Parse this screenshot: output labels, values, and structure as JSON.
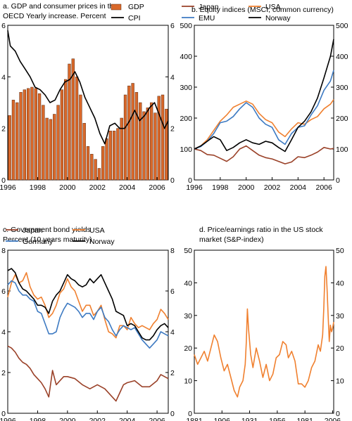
{
  "chart_data": [
    {
      "id": "a",
      "type": "bar",
      "title_lines": [
        "a. GDP and consumer prices in the",
        "OECD Yearly increase. Percent"
      ],
      "ylim": [
        0,
        6
      ],
      "y_ticks": [
        0,
        2,
        4,
        6
      ],
      "x_range": [
        1996,
        2006.75
      ],
      "x_ticks": [
        1996,
        1998,
        2000,
        2002,
        2004,
        2006
      ],
      "legend": [
        {
          "name": "GDP",
          "color": "#d9682a",
          "kind": "bar"
        },
        {
          "name": "CPI",
          "color": "#000000",
          "kind": "line"
        }
      ],
      "series": [
        {
          "name": "GDP",
          "kind": "bar",
          "color": "#d9682a",
          "x": [
            1996.0,
            1996.25,
            1996.5,
            1996.75,
            1997.0,
            1997.25,
            1997.5,
            1997.75,
            1998.0,
            1998.25,
            1998.5,
            1998.75,
            1999.0,
            1999.25,
            1999.5,
            1999.75,
            2000.0,
            2000.25,
            2000.5,
            2000.75,
            2001.0,
            2001.25,
            2001.5,
            2001.75,
            2002.0,
            2002.25,
            2002.5,
            2002.75,
            2003.0,
            2003.25,
            2003.5,
            2003.75,
            2004.0,
            2004.25,
            2004.5,
            2004.75,
            2005.0,
            2005.25,
            2005.5,
            2005.75,
            2006.0,
            2006.25,
            2006.5
          ],
          "values": [
            2.5,
            3.1,
            3.0,
            3.4,
            3.5,
            3.55,
            3.6,
            3.55,
            3.35,
            2.9,
            2.4,
            2.35,
            2.55,
            2.9,
            3.5,
            3.9,
            4.5,
            4.7,
            4.0,
            3.3,
            2.2,
            1.3,
            1.0,
            0.8,
            0.45,
            1.3,
            1.6,
            1.9,
            1.9,
            2.0,
            2.4,
            3.3,
            3.65,
            3.75,
            3.4,
            3.0,
            2.65,
            2.8,
            3.0,
            2.6,
            3.25,
            3.3,
            2.75
          ]
        },
        {
          "name": "CPI",
          "kind": "line",
          "color": "#000000",
          "x": [
            1996.0,
            1996.17,
            1996.5,
            1996.83,
            1997.17,
            1997.5,
            1997.83,
            1998.17,
            1998.5,
            1998.83,
            1999.17,
            1999.5,
            1999.83,
            2000.17,
            2000.5,
            2000.83,
            2001.17,
            2001.5,
            2001.83,
            2002.17,
            2002.5,
            2002.83,
            2003.17,
            2003.5,
            2003.83,
            2004.17,
            2004.5,
            2004.83,
            2005.17,
            2005.5,
            2005.83,
            2006.17,
            2006.5,
            2006.75
          ],
          "values": [
            5.8,
            5.2,
            5.0,
            4.6,
            4.3,
            4.0,
            3.6,
            3.5,
            3.3,
            3.0,
            3.1,
            3.5,
            3.8,
            3.9,
            4.2,
            3.8,
            3.2,
            2.8,
            2.4,
            1.8,
            1.4,
            2.1,
            2.2,
            2.0,
            2.0,
            2.3,
            2.7,
            2.3,
            2.5,
            2.8,
            3.0,
            2.5,
            2.0,
            2.3
          ]
        }
      ]
    },
    {
      "id": "b",
      "type": "line",
      "title_lines": [
        "b. Equity indices (MSCI, common currency)"
      ],
      "ylim": [
        0,
        500
      ],
      "y_ticks": [
        0,
        100,
        200,
        300,
        400,
        500
      ],
      "x_range": [
        1996,
        2006.75
      ],
      "x_ticks": [
        1996,
        1998,
        2000,
        2002,
        2004,
        2006
      ],
      "legend": [
        {
          "name": "Japan",
          "color": "#9a4128"
        },
        {
          "name": "USA",
          "color": "#f0802f"
        },
        {
          "name": "EMU",
          "color": "#3d7ac2"
        },
        {
          "name": "Norway",
          "color": "#000000"
        }
      ],
      "series": [
        {
          "name": "Japan",
          "color": "#9a4128",
          "x": [
            1996,
            1996.5,
            1997,
            1997.5,
            1998,
            1998.5,
            1999,
            1999.5,
            2000,
            2000.5,
            2001,
            2001.5,
            2002,
            2002.5,
            2003,
            2003.5,
            2004,
            2004.5,
            2005,
            2005.5,
            2006,
            2006.5,
            2006.75
          ],
          "values": [
            100,
            95,
            82,
            80,
            70,
            60,
            75,
            100,
            110,
            95,
            80,
            72,
            68,
            60,
            52,
            58,
            75,
            72,
            80,
            90,
            105,
            100,
            102
          ]
        },
        {
          "name": "USA",
          "color": "#f0802f",
          "x": [
            1996,
            1996.5,
            1997,
            1997.5,
            1998,
            1998.5,
            1999,
            1999.5,
            2000,
            2000.5,
            2001,
            2001.5,
            2002,
            2002.5,
            2003,
            2003.5,
            2004,
            2004.5,
            2005,
            2005.5,
            2006,
            2006.5,
            2006.75
          ],
          "values": [
            100,
            110,
            130,
            160,
            190,
            210,
            235,
            245,
            255,
            245,
            215,
            195,
            185,
            155,
            140,
            165,
            185,
            180,
            195,
            205,
            230,
            245,
            260
          ]
        },
        {
          "name": "EMU",
          "color": "#3d7ac2",
          "x": [
            1996,
            1996.5,
            1997,
            1997.5,
            1998,
            1998.5,
            1999,
            1999.5,
            2000,
            2000.5,
            2001,
            2001.5,
            2002,
            2002.5,
            2003,
            2003.5,
            2004,
            2004.5,
            2005,
            2005.5,
            2006,
            2006.5,
            2006.75
          ],
          "values": [
            100,
            108,
            125,
            150,
            185,
            190,
            205,
            230,
            250,
            235,
            200,
            180,
            170,
            130,
            115,
            150,
            170,
            175,
            210,
            240,
            290,
            320,
            355
          ]
        },
        {
          "name": "Norway",
          "color": "#000000",
          "x": [
            1996,
            1996.5,
            1997,
            1997.5,
            1998,
            1998.5,
            1999,
            1999.5,
            2000,
            2000.5,
            2001,
            2001.5,
            2002,
            2002.5,
            2003,
            2003.5,
            2004,
            2004.5,
            2005,
            2005.5,
            2006,
            2006.5,
            2006.75
          ],
          "values": [
            100,
            110,
            125,
            140,
            130,
            95,
            105,
            120,
            130,
            120,
            115,
            125,
            120,
            105,
            92,
            130,
            170,
            190,
            220,
            265,
            330,
            400,
            455
          ]
        }
      ]
    },
    {
      "id": "c",
      "type": "line",
      "title_lines": [
        "c. Government bond yields",
        "Percent (10 years maturity)"
      ],
      "ylim": [
        0,
        8
      ],
      "y_ticks": [
        0,
        2,
        4,
        6,
        8
      ],
      "x_range": [
        1996,
        2006.75
      ],
      "x_ticks": [
        1996,
        1998,
        2000,
        2002,
        2004,
        2006
      ],
      "legend": [
        {
          "name": "Japan",
          "color": "#9a4128"
        },
        {
          "name": "USA",
          "color": "#f0802f"
        },
        {
          "name": "Germany",
          "color": "#3d7ac2"
        },
        {
          "name": "Norway",
          "color": "#000000"
        }
      ],
      "series": [
        {
          "name": "Japan",
          "color": "#9a4128",
          "x": [
            1996,
            1996.25,
            1996.5,
            1996.75,
            1997,
            1997.25,
            1997.5,
            1997.75,
            1998,
            1998.25,
            1998.5,
            1998.75,
            1999,
            1999.25,
            1999.5,
            1999.75,
            2000,
            2000.5,
            2001,
            2001.5,
            2002,
            2002.5,
            2003,
            2003.25,
            2003.5,
            2003.75,
            2004,
            2004.5,
            2005,
            2005.5,
            2006,
            2006.25,
            2006.5,
            2006.75
          ],
          "values": [
            3.3,
            3.2,
            3.0,
            2.7,
            2.5,
            2.4,
            2.2,
            1.9,
            1.7,
            1.5,
            1.2,
            0.8,
            2.1,
            1.4,
            1.6,
            1.8,
            1.8,
            1.7,
            1.4,
            1.2,
            1.4,
            1.2,
            0.8,
            0.6,
            1.0,
            1.4,
            1.5,
            1.6,
            1.3,
            1.3,
            1.6,
            1.9,
            1.8,
            1.7
          ]
        },
        {
          "name": "USA",
          "color": "#f0802f",
          "x": [
            1996,
            1996.25,
            1996.5,
            1996.75,
            1997,
            1997.25,
            1997.5,
            1997.75,
            1998,
            1998.25,
            1998.5,
            1998.75,
            1999,
            1999.25,
            1999.5,
            1999.75,
            2000,
            2000.25,
            2000.5,
            2000.75,
            2001,
            2001.25,
            2001.5,
            2001.75,
            2002,
            2002.25,
            2002.5,
            2002.75,
            2003,
            2003.25,
            2003.5,
            2003.75,
            2004,
            2004.25,
            2004.5,
            2004.75,
            2005,
            2005.25,
            2005.5,
            2005.75,
            2006,
            2006.25,
            2006.5,
            2006.75
          ],
          "values": [
            5.7,
            6.4,
            6.8,
            6.4,
            6.5,
            6.9,
            6.2,
            5.8,
            5.6,
            5.7,
            5.3,
            4.7,
            4.9,
            5.3,
            5.9,
            6.1,
            6.6,
            6.2,
            6.0,
            5.5,
            5.0,
            5.3,
            5.3,
            4.8,
            5.0,
            5.3,
            4.6,
            4.0,
            3.9,
            3.7,
            4.3,
            4.3,
            4.1,
            4.7,
            4.4,
            4.2,
            4.3,
            4.2,
            4.1,
            4.4,
            4.6,
            5.1,
            4.9,
            4.6
          ]
        },
        {
          "name": "Germany",
          "color": "#3d7ac2",
          "x": [
            1996,
            1996.25,
            1996.5,
            1996.75,
            1997,
            1997.25,
            1997.5,
            1997.75,
            1998,
            1998.25,
            1998.5,
            1998.75,
            1999,
            1999.25,
            1999.5,
            1999.75,
            2000,
            2000.25,
            2000.5,
            2000.75,
            2001,
            2001.25,
            2001.5,
            2001.75,
            2002,
            2002.25,
            2002.5,
            2002.75,
            2003,
            2003.25,
            2003.5,
            2003.75,
            2004,
            2004.25,
            2004.5,
            2004.75,
            2005,
            2005.25,
            2005.5,
            2005.75,
            2006,
            2006.25,
            2006.5,
            2006.75
          ],
          "values": [
            6.3,
            6.5,
            6.4,
            6.0,
            5.8,
            5.8,
            5.6,
            5.5,
            5.0,
            4.9,
            4.4,
            3.9,
            3.9,
            4.0,
            4.7,
            5.1,
            5.4,
            5.3,
            5.2,
            5.0,
            4.7,
            4.9,
            4.9,
            4.6,
            5.0,
            5.2,
            4.7,
            4.5,
            4.1,
            3.8,
            4.1,
            4.3,
            4.2,
            4.1,
            4.2,
            3.9,
            3.6,
            3.4,
            3.2,
            3.4,
            3.6,
            4.0,
            3.9,
            3.8
          ]
        },
        {
          "name": "Norway",
          "color": "#000000",
          "x": [
            1996,
            1996.25,
            1996.5,
            1996.75,
            1997,
            1997.25,
            1997.5,
            1997.75,
            1998,
            1998.25,
            1998.5,
            1998.75,
            1999,
            1999.25,
            1999.5,
            1999.75,
            2000,
            2000.25,
            2000.5,
            2000.75,
            2001,
            2001.25,
            2001.5,
            2001.75,
            2002,
            2002.25,
            2002.5,
            2002.75,
            2003,
            2003.25,
            2003.5,
            2003.75,
            2004,
            2004.25,
            2004.5,
            2004.75,
            2005,
            2005.25,
            2005.5,
            2005.75,
            2006,
            2006.25,
            2006.5,
            2006.75
          ],
          "values": [
            7.0,
            7.1,
            6.9,
            6.4,
            6.1,
            6.0,
            5.8,
            5.6,
            5.3,
            5.3,
            5.2,
            4.9,
            5.5,
            5.8,
            6.0,
            6.4,
            6.8,
            6.6,
            6.5,
            6.3,
            6.2,
            6.3,
            6.6,
            6.4,
            6.6,
            6.8,
            6.4,
            6.0,
            5.6,
            5.0,
            4.9,
            4.8,
            4.3,
            4.4,
            4.3,
            4.0,
            3.7,
            3.6,
            3.6,
            3.8,
            4.1,
            4.3,
            4.4,
            4.2
          ]
        }
      ]
    },
    {
      "id": "d",
      "type": "line",
      "title_lines": [
        "d. Price/earnings ratio in the US stock",
        "market (S&P-index)"
      ],
      "ylim": [
        0,
        50
      ],
      "y_ticks": [
        0,
        10,
        20,
        30,
        40,
        50
      ],
      "x_range": [
        1881,
        2007
      ],
      "x_ticks": [
        1881,
        1906,
        1931,
        1956,
        1981,
        2006
      ],
      "series": [
        {
          "name": "P/E",
          "color": "#f0802f",
          "x": [
            1881,
            1884,
            1887,
            1890,
            1893,
            1896,
            1899,
            1902,
            1905,
            1908,
            1911,
            1914,
            1917,
            1920,
            1922,
            1925,
            1927,
            1928,
            1929,
            1930,
            1932,
            1934,
            1937,
            1940,
            1943,
            1946,
            1949,
            1952,
            1955,
            1958,
            1961,
            1964,
            1966,
            1969,
            1972,
            1975,
            1978,
            1981,
            1984,
            1987,
            1990,
            1993,
            1995,
            1997,
            1998,
            1999,
            2000,
            2001,
            2002,
            2003,
            2004,
            2005,
            2006,
            2007
          ],
          "values": [
            18,
            15,
            17,
            19,
            16,
            20,
            24,
            22,
            17,
            13,
            15,
            11,
            7,
            5,
            8,
            10,
            15,
            22,
            32,
            26,
            18,
            14,
            20,
            16,
            11,
            15,
            10,
            12,
            17,
            18,
            22,
            21,
            17,
            19,
            16,
            9,
            9,
            8,
            10,
            14,
            16,
            21,
            19,
            24,
            32,
            42,
            45,
            38,
            30,
            22,
            27,
            25,
            26,
            28
          ]
        }
      ]
    }
  ]
}
